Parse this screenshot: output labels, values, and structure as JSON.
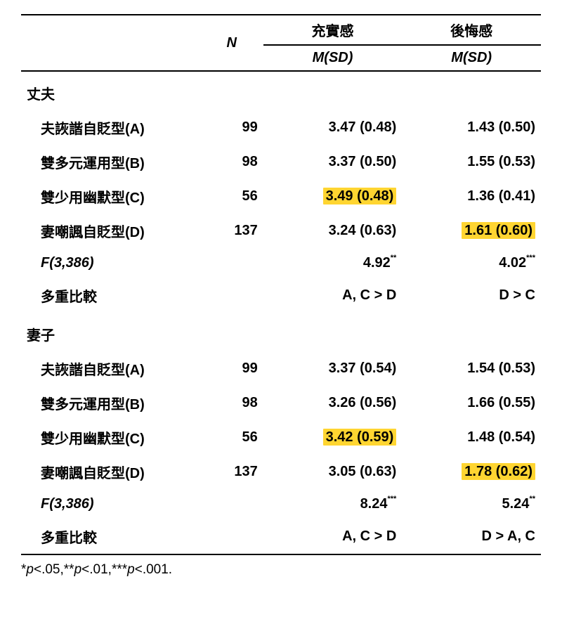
{
  "header": {
    "n": "N",
    "col1_top": "充實感",
    "col2_top": "後悔感",
    "msd": "M(SD)"
  },
  "sections": [
    {
      "title": "丈夫",
      "rows": [
        {
          "label": "夫詼諧自貶型(A)",
          "n": "99",
          "c1": "3.47 (0.48)",
          "c1_hl": false,
          "c2": "1.43 (0.50)",
          "c2_hl": false
        },
        {
          "label": "雙多元運用型(B)",
          "n": "98",
          "c1": "3.37 (0.50)",
          "c1_hl": false,
          "c2": "1.55 (0.53)",
          "c2_hl": false
        },
        {
          "label": "雙少用幽默型(C)",
          "n": "56",
          "c1": "3.49 (0.48)",
          "c1_hl": true,
          "c2": "1.36 (0.41)",
          "c2_hl": false
        },
        {
          "label": "妻嘲諷自貶型(D)",
          "n": "137",
          "c1": "3.24 (0.63)",
          "c1_hl": false,
          "c2": "1.61 (0.60)",
          "c2_hl": true
        }
      ],
      "f_label": "F(3,386)",
      "f_c1": "4.92",
      "f_c1_stars": "**",
      "f_c2": "4.02",
      "f_c2_stars": "***",
      "compare_label": "多重比較",
      "compare_c1": "A, C > D",
      "compare_c2": "D > C"
    },
    {
      "title": "妻子",
      "rows": [
        {
          "label": "夫詼諧自貶型(A)",
          "n": "99",
          "c1": "3.37 (0.54)",
          "c1_hl": false,
          "c2": "1.54 (0.53)",
          "c2_hl": false
        },
        {
          "label": "雙多元運用型(B)",
          "n": "98",
          "c1": "3.26 (0.56)",
          "c1_hl": false,
          "c2": "1.66 (0.55)",
          "c2_hl": false
        },
        {
          "label": "雙少用幽默型(C)",
          "n": "56",
          "c1": "3.42 (0.59)",
          "c1_hl": true,
          "c2": "1.48 (0.54)",
          "c2_hl": false
        },
        {
          "label": "妻嘲諷自貶型(D)",
          "n": "137",
          "c1": "3.05 (0.63)",
          "c1_hl": false,
          "c2": "1.78 (0.62)",
          "c2_hl": true
        }
      ],
      "f_label": "F(3,386)",
      "f_c1": "8.24",
      "f_c1_stars": "***",
      "f_c2": "5.24",
      "f_c2_stars": "**",
      "compare_label": "多重比較",
      "compare_c1": "A, C > D",
      "compare_c2": "D > A, C"
    }
  ],
  "footnote_parts": {
    "p1": "*",
    "p1v": "p",
    "p1t": "<.05,",
    "p2": "**",
    "p2v": "p",
    "p2t": "<.01,",
    "p3": "***",
    "p3v": "p",
    "p3t": "<.001."
  },
  "style": {
    "highlight_color": "#ffd531",
    "border_color": "#000000",
    "background": "#ffffff"
  }
}
